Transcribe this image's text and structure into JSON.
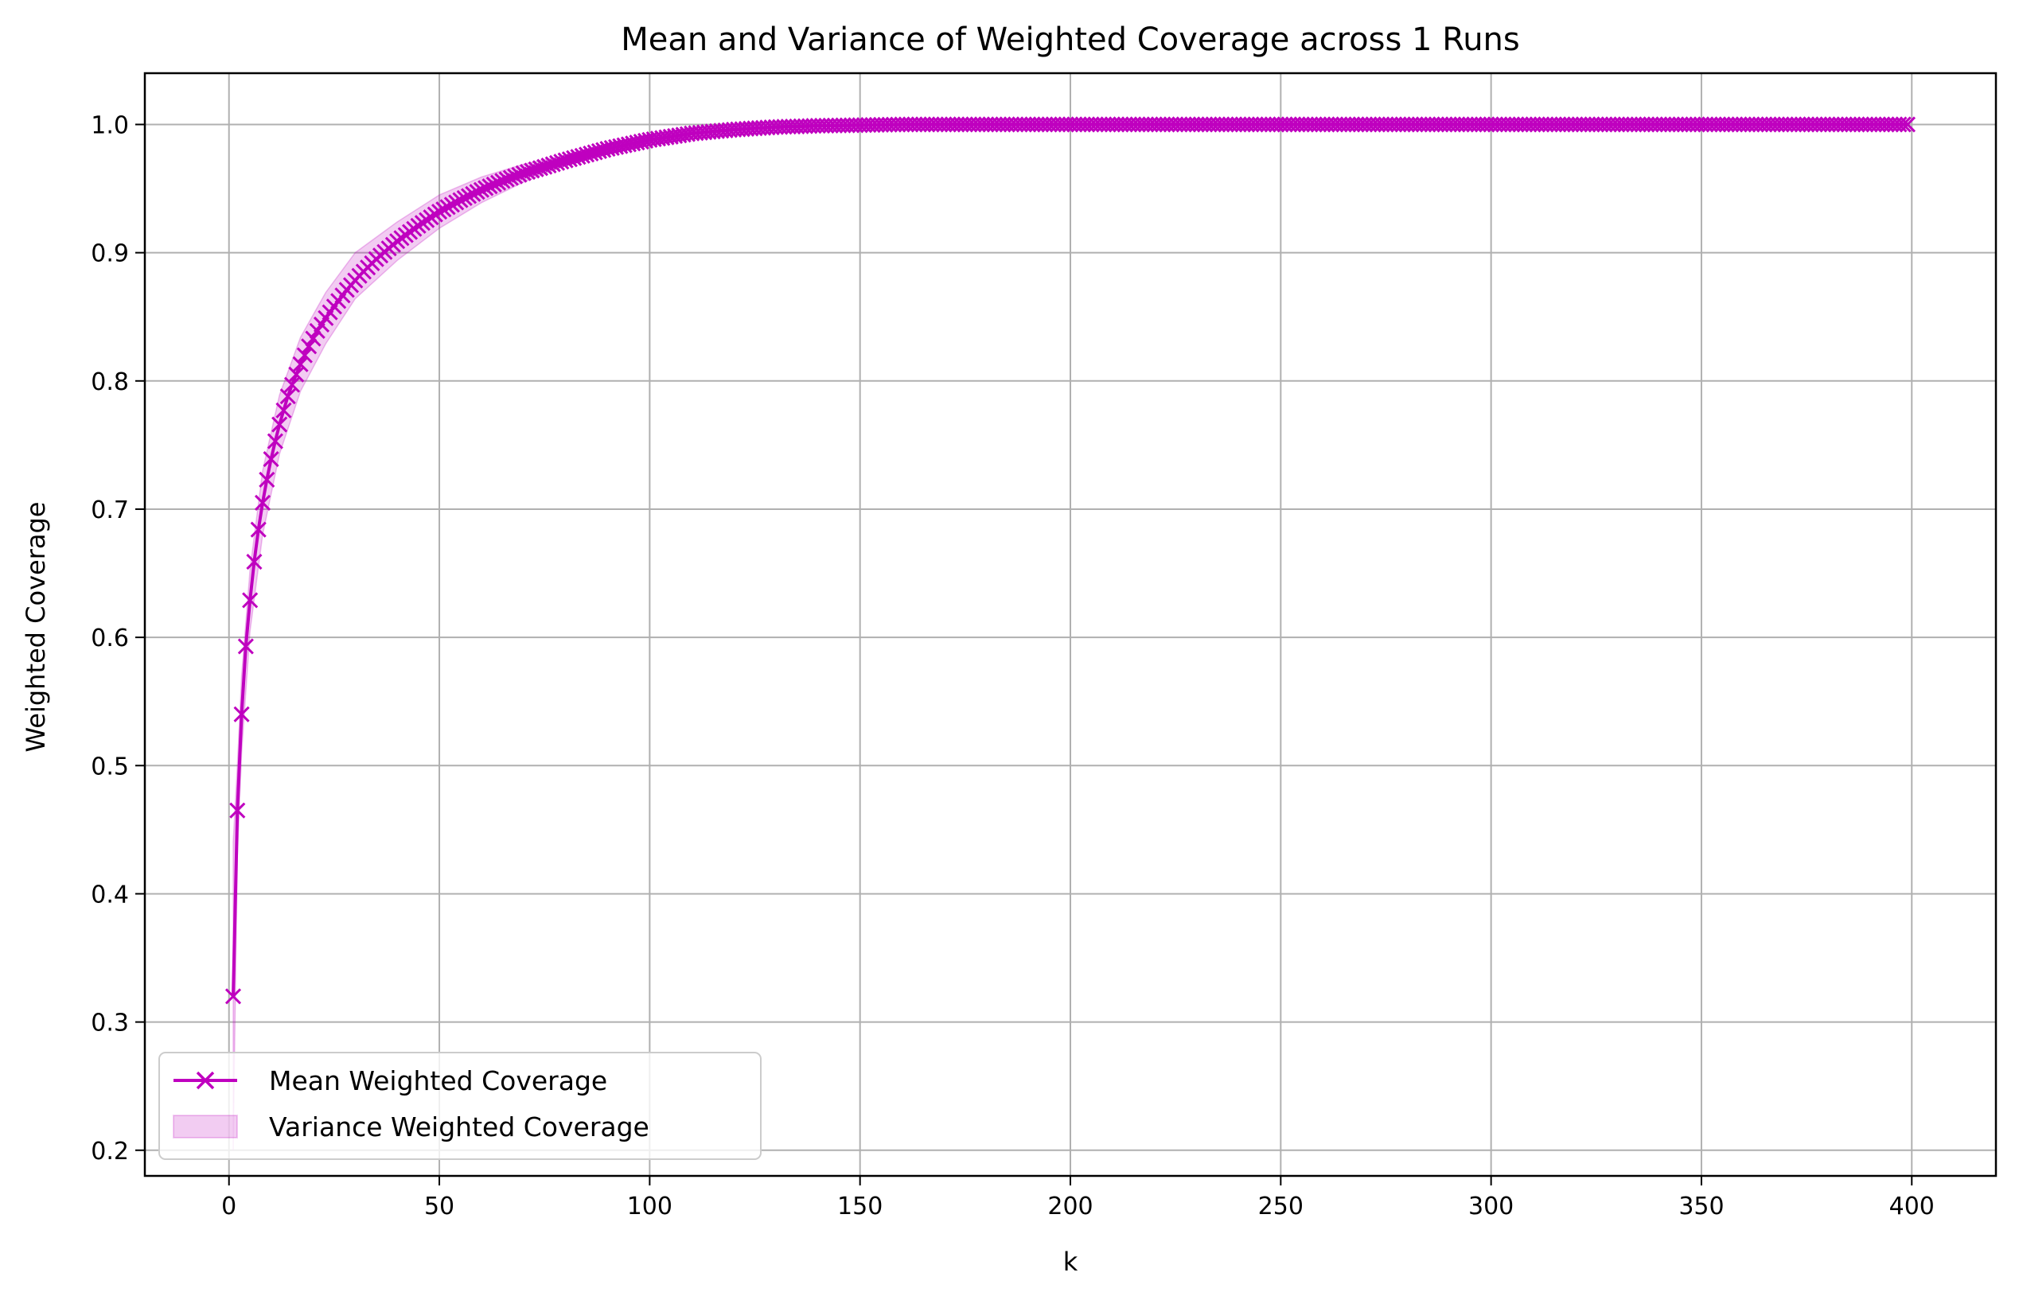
{
  "chart_data": {
    "type": "line",
    "title": "Mean and Variance of Weighted Coverage across 1 Runs",
    "xlabel": "k",
    "ylabel": "Weighted Coverage",
    "xlim": [
      -20,
      420
    ],
    "ylim": [
      0.18,
      1.04
    ],
    "xticks": [
      0,
      50,
      100,
      150,
      200,
      250,
      300,
      350,
      400
    ],
    "yticks": [
      0.2,
      0.3,
      0.4,
      0.5,
      0.6,
      0.7,
      0.8,
      0.9,
      1.0
    ],
    "ytick_labels": [
      "0.2",
      "0.3",
      "0.4",
      "0.5",
      "0.6",
      "0.7",
      "0.8",
      "0.9",
      "1.0"
    ],
    "grid": true,
    "legend_position": "lower-left",
    "series": [
      {
        "name": "Mean Weighted Coverage",
        "color": "#bf00bf",
        "marker": "x",
        "x_range": [
          1,
          399
        ],
        "x": [
          1,
          2,
          3,
          4,
          5,
          6,
          7,
          8,
          9,
          10,
          11,
          12,
          13,
          14,
          15,
          17,
          19,
          21,
          23,
          25,
          28,
          31,
          35,
          40,
          45,
          50,
          55,
          60,
          65,
          70,
          80,
          90,
          100,
          110,
          120,
          130,
          140,
          150,
          160,
          200,
          300,
          399
        ],
        "values": [
          0.32,
          0.465,
          0.54,
          0.593,
          0.629,
          0.659,
          0.684,
          0.705,
          0.723,
          0.739,
          0.753,
          0.766,
          0.777,
          0.788,
          0.797,
          0.813,
          0.827,
          0.839,
          0.849,
          0.858,
          0.871,
          0.882,
          0.895,
          0.909,
          0.921,
          0.932,
          0.941,
          0.949,
          0.956,
          0.962,
          0.972,
          0.981,
          0.988,
          0.993,
          0.996,
          0.998,
          0.999,
          0.9995,
          1.0,
          1.0,
          1.0,
          1.0
        ]
      },
      {
        "name": "Variance Weighted Coverage",
        "type": "band",
        "color": "#bf00bf",
        "x": [
          1,
          2,
          3,
          5,
          8,
          12,
          17,
          23,
          30,
          40,
          50,
          60,
          70,
          80,
          90,
          100,
          110,
          120,
          130,
          140,
          150,
          399
        ],
        "lower": [
          0.2,
          0.43,
          0.51,
          0.605,
          0.68,
          0.743,
          0.792,
          0.829,
          0.864,
          0.894,
          0.919,
          0.939,
          0.955,
          0.968,
          0.978,
          0.986,
          0.992,
          0.996,
          0.998,
          0.999,
          1.0,
          1.0
        ],
        "upper": [
          0.44,
          0.5,
          0.57,
          0.653,
          0.73,
          0.789,
          0.834,
          0.869,
          0.9,
          0.924,
          0.945,
          0.959,
          0.969,
          0.976,
          0.984,
          0.99,
          0.994,
          0.997,
          0.999,
          1.0,
          1.0,
          1.0
        ]
      }
    ]
  }
}
